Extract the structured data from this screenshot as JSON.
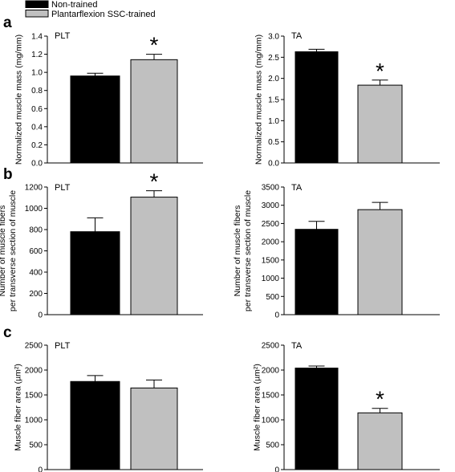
{
  "legend": {
    "items": [
      {
        "label": "Non-trained",
        "color": "#000000"
      },
      {
        "label": "Plantarflexion SSC-trained",
        "color": "#c0c0c0"
      }
    ],
    "placement": "top-left"
  },
  "colors": {
    "non_trained": "#000000",
    "trained": "#c0c0c0",
    "axis": "#000000"
  },
  "chart_data": [
    {
      "type": "bar",
      "row_label": "a",
      "panel_title": "PLT",
      "ylabel": "Normalized muscle mass (mg/mm)",
      "ylim": [
        0,
        1.4
      ],
      "yticks": [
        0.0,
        0.2,
        0.4,
        0.6,
        0.8,
        1.0,
        1.2,
        1.4
      ],
      "tick_labels": [
        "0.0",
        "0.2",
        "0.4",
        "0.6",
        "0.8",
        "1.0",
        "1.2",
        "1.4"
      ],
      "series": [
        {
          "name": "Non-trained",
          "value": 0.96,
          "error": 0.03,
          "significant": false
        },
        {
          "name": "Plantarflexion SSC-trained",
          "value": 1.14,
          "error": 0.06,
          "significant": true
        }
      ],
      "significance_marker": "*"
    },
    {
      "type": "bar",
      "row_label": "",
      "panel_title": "TA",
      "ylabel": "Normalized muscle mass (mg/mm)",
      "ylim": [
        0,
        3.0
      ],
      "yticks": [
        0.0,
        0.5,
        1.0,
        1.5,
        2.0,
        2.5,
        3.0
      ],
      "tick_labels": [
        "0.0",
        "0.5",
        "1.0",
        "1.5",
        "2.0",
        "2.5",
        "3.0"
      ],
      "series": [
        {
          "name": "Non-trained",
          "value": 2.63,
          "error": 0.06,
          "significant": false
        },
        {
          "name": "Plantarflexion SSC-trained",
          "value": 1.84,
          "error": 0.12,
          "significant": true
        }
      ],
      "significance_marker": "*"
    },
    {
      "type": "bar",
      "row_label": "b",
      "panel_title": "PLT",
      "ylabel": "Number of muscle fibers\nper transverse section of muscle",
      "ylim": [
        0,
        1200
      ],
      "yticks": [
        0,
        200,
        400,
        600,
        800,
        1000,
        1200
      ],
      "tick_labels": [
        "0",
        "200",
        "400",
        "600",
        "800",
        "1000",
        "1200"
      ],
      "series": [
        {
          "name": "Non-trained",
          "value": 780,
          "error": 130,
          "significant": false
        },
        {
          "name": "Plantarflexion SSC-trained",
          "value": 1105,
          "error": 60,
          "significant": true
        }
      ],
      "significance_marker": "*"
    },
    {
      "type": "bar",
      "row_label": "",
      "panel_title": "TA",
      "ylabel": "Number of muscle fibers\nper transverse section of muscle",
      "ylim": [
        0,
        3500
      ],
      "yticks": [
        0,
        500,
        1000,
        1500,
        2000,
        2500,
        3000,
        3500
      ],
      "tick_labels": [
        "0",
        "500",
        "1000",
        "1500",
        "2000",
        "2500",
        "3000",
        "3500"
      ],
      "series": [
        {
          "name": "Non-trained",
          "value": 2340,
          "error": 220,
          "significant": false
        },
        {
          "name": "Plantarflexion SSC-trained",
          "value": 2880,
          "error": 200,
          "significant": false
        }
      ],
      "significance_marker": "*"
    },
    {
      "type": "bar",
      "row_label": "c",
      "panel_title": "PLT",
      "ylabel": "Muscle fiber area (µm²)",
      "ylim": [
        0,
        2500
      ],
      "yticks": [
        0,
        500,
        1000,
        1500,
        2000,
        2500
      ],
      "tick_labels": [
        "0",
        "500",
        "1000",
        "1500",
        "2000",
        "2500"
      ],
      "series": [
        {
          "name": "Non-trained",
          "value": 1770,
          "error": 120,
          "significant": false
        },
        {
          "name": "Plantarflexion SSC-trained",
          "value": 1640,
          "error": 160,
          "significant": false
        }
      ],
      "significance_marker": "*"
    },
    {
      "type": "bar",
      "row_label": "",
      "panel_title": "TA",
      "ylabel": "Muscle fiber area (µm²)",
      "ylim": [
        0,
        2500
      ],
      "yticks": [
        0,
        500,
        1000,
        1500,
        2000,
        2500
      ],
      "tick_labels": [
        "0",
        "500",
        "1000",
        "1500",
        "2000",
        "2500"
      ],
      "series": [
        {
          "name": "Non-trained",
          "value": 2040,
          "error": 40,
          "significant": false
        },
        {
          "name": "Plantarflexion SSC-trained",
          "value": 1140,
          "error": 90,
          "significant": true
        }
      ],
      "significance_marker": "*"
    }
  ]
}
